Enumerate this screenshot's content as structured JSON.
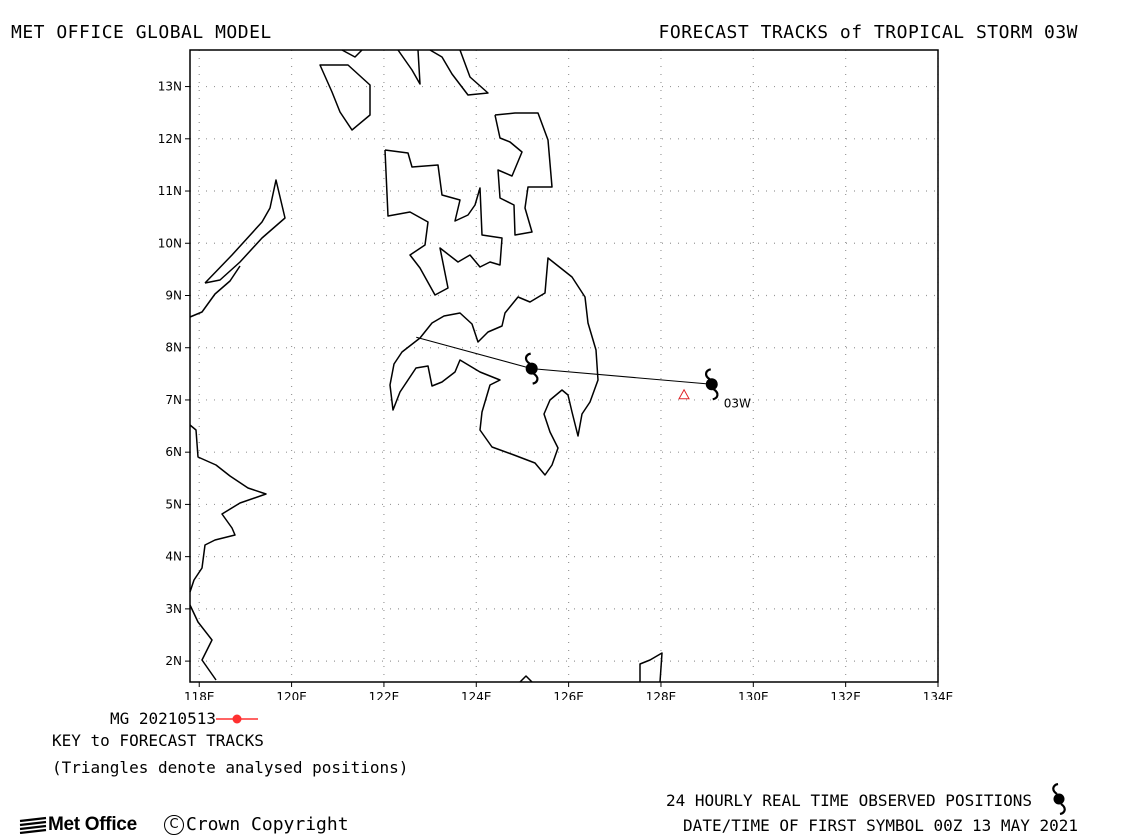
{
  "header": {
    "left_title": "MET OFFICE GLOBAL MODEL",
    "right_title": "FORECAST TRACKS of TROPICAL STORM 03W"
  },
  "map": {
    "lon_range": [
      117.8,
      134.0
    ],
    "lat_range": [
      1.6,
      13.7
    ],
    "grid": true,
    "x_ticks": [
      {
        "value": 118,
        "label": "118E"
      },
      {
        "value": 120,
        "label": "120E"
      },
      {
        "value": 122,
        "label": "122E"
      },
      {
        "value": 124,
        "label": "124E"
      },
      {
        "value": 126,
        "label": "126E"
      },
      {
        "value": 128,
        "label": "128E"
      },
      {
        "value": 130,
        "label": "130E"
      },
      {
        "value": 132,
        "label": "132E"
      },
      {
        "value": 134,
        "label": "134E"
      }
    ],
    "y_ticks": [
      {
        "value": 2,
        "label": "2N"
      },
      {
        "value": 3,
        "label": "3N"
      },
      {
        "value": 4,
        "label": "4N"
      },
      {
        "value": 5,
        "label": "5N"
      },
      {
        "value": 6,
        "label": "6N"
      },
      {
        "value": 7,
        "label": "7N"
      },
      {
        "value": 8,
        "label": "8N"
      },
      {
        "value": 9,
        "label": "9N"
      },
      {
        "value": 10,
        "label": "10N"
      },
      {
        "value": 11,
        "label": "11N"
      },
      {
        "value": 12,
        "label": "12N"
      },
      {
        "value": 13,
        "label": "13N"
      }
    ],
    "storm_label": "03W",
    "forecast_track": [
      [
        122.7,
        8.2
      ],
      [
        125.2,
        7.6
      ],
      [
        129.1,
        7.3
      ]
    ],
    "observed_positions": [
      [
        125.2,
        7.6
      ],
      [
        129.1,
        7.3
      ]
    ],
    "analysed_position": [
      128.5,
      7.1
    ],
    "colors": {
      "coast": "#000000",
      "grid": "#999999",
      "analysed": "#e0242a",
      "key_line": "#ff3030"
    }
  },
  "key": {
    "run_label": "MG 20210513",
    "title": "KEY to FORECAST TRACKS",
    "note": "(Triangles denote analysed positions)"
  },
  "footer": {
    "observed_label": "24 HOURLY REAL TIME OBSERVED POSITIONS",
    "first_symbol_label": "DATE/TIME OF FIRST SYMBOL 00Z 13 MAY 2021",
    "logo_text": "Met Office",
    "copyright_symbol": "C",
    "copyright_text": "Crown Copyright",
    "icons": {
      "observed": "tropical-storm-icon",
      "logo": "met-office-logo-icon"
    }
  }
}
